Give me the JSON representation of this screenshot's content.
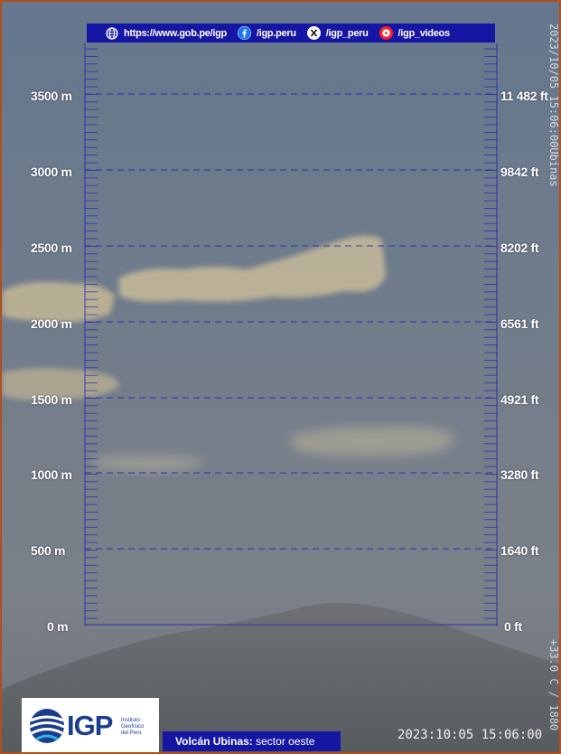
{
  "header": {
    "website": "https://www.gob.pe/igp",
    "facebook": "/igp.peru",
    "x": "/igp_peru",
    "youtube": "/igp_videos",
    "icons": [
      "globe-icon",
      "facebook-icon",
      "x-icon",
      "youtube-icon"
    ]
  },
  "scale": {
    "meters": [
      "3500 m",
      "3000 m",
      "2500 m",
      "2000 m",
      "1500 m",
      "1000 m",
      "500 m",
      "0 m"
    ],
    "feet": [
      "11 482 ft",
      "9842 ft",
      "8202 ft",
      "6561 ft",
      "4921 ft",
      "3280 ft",
      "1640 ft",
      "0 ft"
    ]
  },
  "overlay": {
    "vertical_top": "2023/10/05 15:06:00Ubinas",
    "vertical_bottom": "+33.0 C / 1880",
    "timestamp": "2023:10:05 15:06:00"
  },
  "logo": {
    "name": "IGP",
    "subtitle": [
      "Instituto",
      "Geofísico",
      "del Perú"
    ]
  },
  "caption": {
    "bold": "Volcán Ubinas:",
    "rest": " sector oeste"
  },
  "colors": {
    "frame": "#b04f1e",
    "overlay_blue": "#1616a4",
    "grid_line": "#1e1eb4",
    "sky_top": "#67788d",
    "sky_bottom": "#7c8188",
    "cloud": "#c9bc9a"
  }
}
